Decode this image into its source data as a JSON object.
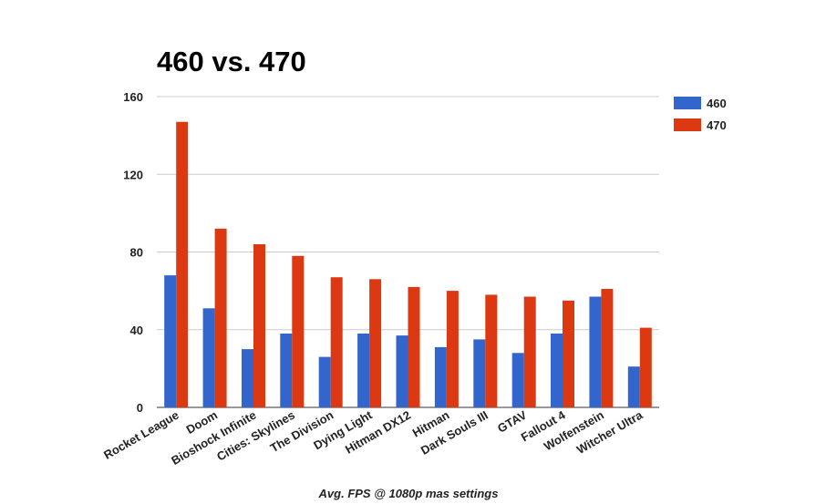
{
  "chart_data": {
    "type": "bar",
    "title": "460 vs. 470",
    "xlabel": "Avg. FPS @ 1080p mas settings",
    "ylabel": "",
    "ylim": [
      0,
      160
    ],
    "yticks": [
      "0",
      "40",
      "80",
      "120",
      "160"
    ],
    "grid": true,
    "legend_position": "top-right",
    "categories": [
      "Rocket League",
      "Doom",
      "Bioshock Infinite",
      "Cities: Skylines",
      "The Division",
      "Dying Light",
      "Hitman DX12",
      "Hitman",
      "Dark Souls III",
      "GTAV",
      "Fallout 4",
      "Wolfenstein",
      "Witcher Ultra"
    ],
    "series": [
      {
        "name": "460",
        "color": "#3366cc",
        "values": [
          68,
          51,
          30,
          38,
          26,
          38,
          37,
          31,
          35,
          28,
          38,
          57,
          21
        ]
      },
      {
        "name": "470",
        "color": "#dc3912",
        "values": [
          147,
          92,
          84,
          78,
          67,
          66,
          62,
          60,
          58,
          57,
          55,
          61,
          41
        ]
      }
    ]
  }
}
